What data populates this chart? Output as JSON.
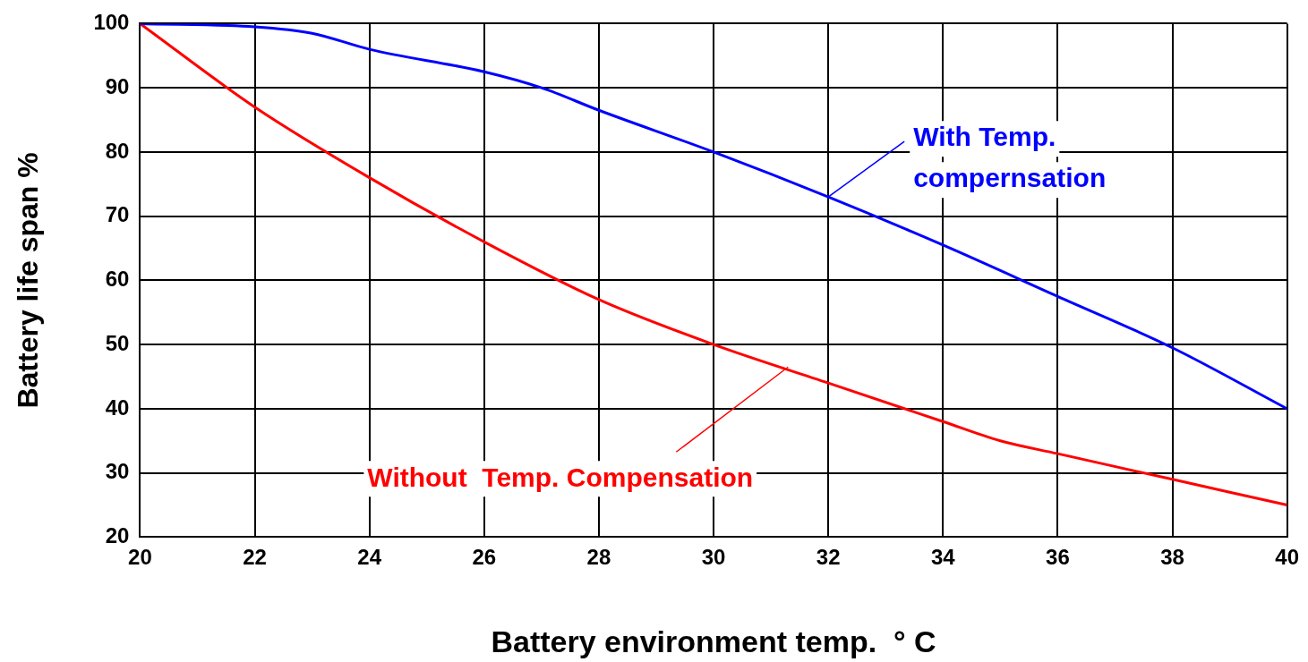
{
  "chart_data": {
    "type": "line",
    "xlabel": "Battery environment temp.  ° C",
    "ylabel": "Battery life span %",
    "xlim": [
      20,
      40
    ],
    "xticks": [
      20,
      22,
      24,
      26,
      28,
      30,
      32,
      34,
      36,
      38,
      40
    ],
    "ylim": [
      20,
      100
    ],
    "yticks": [
      20,
      30,
      40,
      50,
      60,
      70,
      80,
      90,
      100
    ],
    "grid": true,
    "legend": false,
    "marker": "none",
    "line_style": "solid",
    "series": [
      {
        "color": "#0000ff",
        "x": [
          20,
          22,
          23,
          24,
          26,
          27,
          28,
          30,
          32,
          34,
          36,
          38,
          40
        ],
        "values": [
          100,
          99.5,
          98.5,
          96,
          92.5,
          90,
          86.5,
          80,
          73,
          65.5,
          57.5,
          49.5,
          40
        ]
      },
      {
        "color": "#ff0000",
        "x": [
          20,
          22,
          24,
          26,
          28,
          30,
          32,
          34,
          35,
          36,
          38,
          40
        ],
        "values": [
          100,
          87,
          76,
          66,
          57,
          50,
          44,
          38,
          35,
          33,
          29,
          25
        ]
      }
    ],
    "annotations": [
      {
        "text": "With Temp.\ncompernsation",
        "x": 32,
        "y": 73
      },
      {
        "text": "Without  Temp. Compensation",
        "x": 31.3,
        "y": 46.5
      }
    ]
  }
}
